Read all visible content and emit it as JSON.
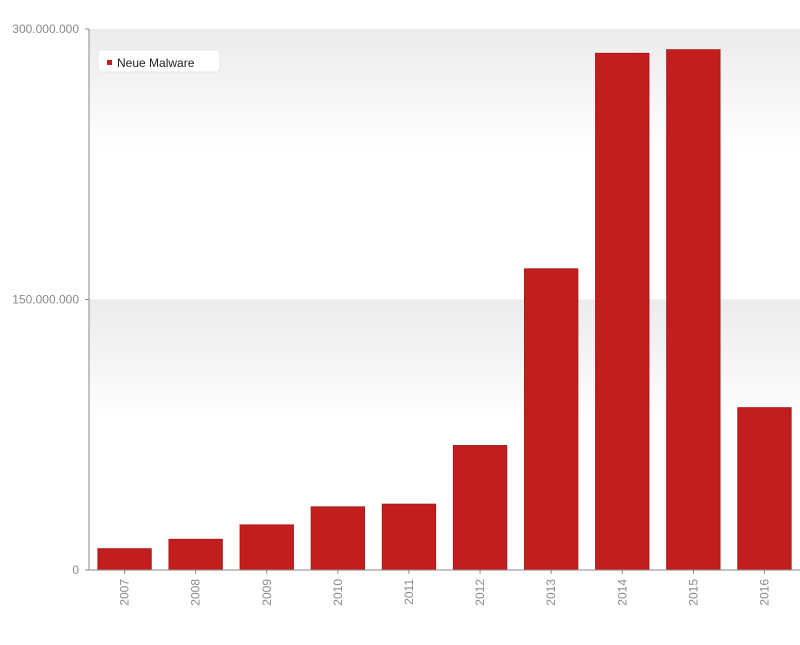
{
  "chart_data": {
    "type": "bar",
    "categories": [
      "2007",
      "2008",
      "2009",
      "2010",
      "2011",
      "2012",
      "2013",
      "2014",
      "2015",
      "2016"
    ],
    "series": [
      {
        "name": "Neue Malware",
        "values": [
          11800000,
          17000000,
          25000000,
          35000000,
          36500000,
          69000000,
          167000000,
          286500000,
          288500000,
          90000000
        ]
      }
    ],
    "yticks": [
      "0",
      "150.000.000",
      "300.000.000"
    ],
    "ylim": [
      0,
      300000000
    ],
    "legend_position": "top-left",
    "grid": "alternating bands",
    "colors": {
      "bar": "#c21e1e",
      "bar_edge": "#a81818",
      "band": "#ececec",
      "axis": "#888888",
      "tick_text": "#8a8a8a"
    }
  }
}
